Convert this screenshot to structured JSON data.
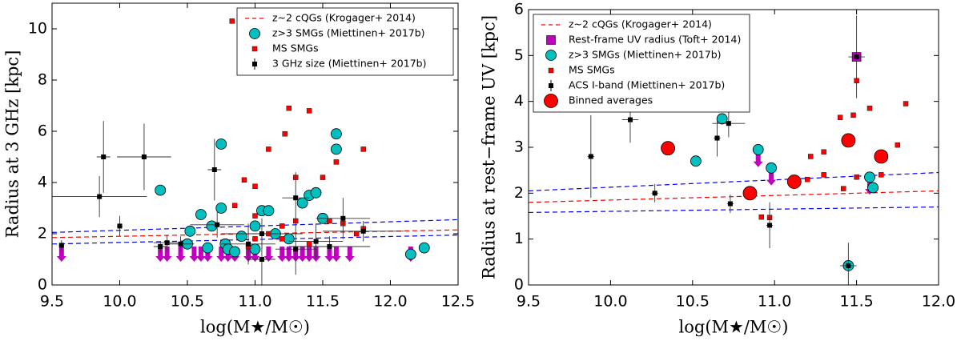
{
  "chart_data": [
    {
      "type": "scatter",
      "ylabel": "Radius at 3 GHz [kpc]",
      "xlabel": "log(M★/M☉)",
      "xlim": [
        9.5,
        12.5
      ],
      "ylim": [
        0,
        11
      ],
      "xticks": [
        9.5,
        {
          "value": 10,
          "label": "10.0"
        },
        10.5,
        {
          "value": 11,
          "label": "11.0"
        },
        11.5,
        {
          "value": 12,
          "label": "12.0"
        },
        12.5
      ],
      "yticks": [
        0,
        2,
        4,
        6,
        8,
        10
      ],
      "legend": "upper right",
      "series": [
        {
          "name": "z~2 cQGs (Krogager+ 2014)",
          "kind": "line",
          "color": "#ff0000",
          "x": [
            9.5,
            12.5
          ],
          "values": [
            1.85,
            2.15
          ]
        },
        {
          "kind": "line",
          "color": "#0000ff",
          "x": [
            9.5,
            12.5
          ],
          "values": [
            2.05,
            2.55
          ]
        },
        {
          "kind": "line",
          "color": "#0000ff",
          "x": [
            9.5,
            12.5
          ],
          "values": [
            1.6,
            1.95
          ]
        },
        {
          "kind": "arrow",
          "color": "#bf00bf",
          "x": [
            9.57,
            10.3,
            10.35,
            10.45,
            10.55,
            10.6,
            10.65,
            10.75,
            10.8,
            10.85,
            10.95,
            11.0,
            11.1,
            11.2,
            11.25,
            11.3,
            11.35,
            11.4,
            11.45,
            11.55,
            11.6,
            11.7,
            12.15
          ],
          "values": [
            1.5,
            1.5,
            1.5,
            1.5,
            1.5,
            1.5,
            1.5,
            1.5,
            1.5,
            1.5,
            1.5,
            1.5,
            1.5,
            1.5,
            1.5,
            1.5,
            1.5,
            1.5,
            1.5,
            1.5,
            1.5,
            1.5,
            1.5
          ]
        },
        {
          "name": "z>3 SMGs (Miettinen+ 2017b)",
          "kind": "circle",
          "color": "#00bfbf",
          "x": [
            10.3,
            10.75,
            10.52,
            10.6,
            10.75,
            10.68,
            10.5,
            10.78,
            10.8,
            10.65,
            10.9,
            11.0,
            11.05,
            11.1,
            11.0,
            11.15,
            11.35,
            11.4,
            11.45,
            11.6,
            11.6,
            11.5,
            12.15,
            12.25,
            11.25,
            10.85
          ],
          "values": [
            3.7,
            5.5,
            2.1,
            2.75,
            3.0,
            2.3,
            1.6,
            1.6,
            1.4,
            1.45,
            1.9,
            2.3,
            2.9,
            2.9,
            1.4,
            2.0,
            3.2,
            3.5,
            3.6,
            5.9,
            5.3,
            2.6,
            1.2,
            1.45,
            1.8,
            1.3
          ]
        },
        {
          "name": "MS SMGs",
          "kind": "square",
          "color": "#ff0000",
          "x": [
            10.83,
            11.25,
            11.4,
            11.1,
            11.8,
            11.22,
            11.0,
            10.92,
            11.3,
            11.6,
            10.85,
            11.5,
            11.0,
            11.3,
            11.8,
            11.75,
            11.2,
            11.4,
            11.0,
            10.95,
            11.55,
            11.65,
            11.1,
            11.2
          ],
          "values": [
            10.3,
            6.9,
            6.8,
            5.3,
            5.3,
            5.9,
            3.85,
            4.1,
            4.2,
            4.8,
            3.1,
            4.2,
            2.7,
            2.5,
            2.2,
            2.0,
            1.8,
            1.6,
            1.8,
            1.5,
            2.5,
            2.4,
            2.0,
            2.3
          ]
        },
        {
          "name": "3 GHz size (Miettinen+ 2017b)",
          "kind": "errsquare",
          "color": "#000000",
          "x": [
            9.57,
            9.85,
            9.88,
            10.0,
            10.18,
            10.3,
            10.35,
            10.45,
            10.7,
            10.72,
            10.95,
            11.05,
            11.05,
            11.3,
            11.45,
            11.3,
            11.65,
            11.8,
            11.55
          ],
          "values": [
            1.55,
            3.45,
            5.0,
            2.3,
            5.0,
            1.5,
            1.65,
            1.6,
            4.5,
            2.35,
            1.6,
            1.0,
            2.0,
            1.4,
            1.7,
            3.4,
            2.6,
            2.1,
            1.5
          ],
          "yerr": [
            0.2,
            0.8,
            1.4,
            0.4,
            1.3,
            0.2,
            0.3,
            0.3,
            1.2,
            0.5,
            0.8,
            1.0,
            0.6,
            1.0,
            0.7,
            1.0,
            0.8,
            0.4,
            0.4
          ],
          "xerr": [
            0.02,
            0.35,
            0.05,
            0.02,
            0.2,
            0.05,
            0.1,
            0.1,
            0.05,
            0.2,
            0.2,
            0.1,
            0.3,
            0.15,
            0.2,
            0.1,
            0.2,
            0.3,
            0.3
          ]
        }
      ]
    },
    {
      "type": "scatter",
      "ylabel": "Radius at rest−frame UV [kpc]",
      "xlabel": "log(M★/M☉)",
      "xlim": [
        9.5,
        12.0
      ],
      "ylim": [
        0,
        6
      ],
      "xticks": [
        9.5,
        {
          "value": 10,
          "label": "10.0"
        },
        10.5,
        {
          "value": 11,
          "label": "11.0"
        },
        11.5,
        {
          "value": 12,
          "label": "12.0"
        }
      ],
      "yticks": [
        0,
        1,
        2,
        3,
        4,
        5,
        6
      ],
      "legend": "upper left",
      "series": [
        {
          "name": "z~2 cQGs (Krogager+ 2014)",
          "kind": "line",
          "color": "#ff0000",
          "x": [
            9.5,
            12.0
          ],
          "values": [
            1.8,
            2.05
          ]
        },
        {
          "kind": "line",
          "color": "#0000ff",
          "x": [
            9.5,
            12.0
          ],
          "values": [
            2.05,
            2.45
          ]
        },
        {
          "kind": "line",
          "color": "#0000ff",
          "x": [
            9.5,
            12.0
          ],
          "values": [
            1.58,
            1.7
          ]
        },
        {
          "kind": "arrow",
          "color": "#bf00bf",
          "x": [
            10.9,
            10.98,
            11.58
          ],
          "values": [
            2.9,
            2.5,
            2.3
          ]
        },
        {
          "name": "Rest-frame UV radius (Toft+ 2014)",
          "kind": "bigsquare",
          "color": "#bf00bf",
          "x": [
            11.5
          ],
          "values": [
            4.97
          ]
        },
        {
          "name": "z>3 SMGs (Miettinen+ 2017b)",
          "kind": "circle",
          "color": "#00bfbf",
          "x": [
            10.68,
            10.52,
            10.9,
            10.98,
            11.58,
            11.6,
            11.45
          ],
          "values": [
            3.62,
            2.7,
            2.95,
            2.55,
            2.35,
            2.12,
            0.42
          ]
        },
        {
          "name": "MS SMGs",
          "kind": "square",
          "color": "#ff0000",
          "x": [
            11.5,
            11.48,
            11.4,
            11.58,
            11.8,
            11.75,
            11.3,
            11.22,
            11.3,
            11.42,
            11.65,
            11.2,
            10.92,
            10.97,
            11.5
          ],
          "values": [
            4.45,
            3.7,
            3.65,
            3.85,
            3.95,
            3.05,
            2.9,
            2.8,
            2.4,
            2.1,
            2.4,
            2.3,
            1.48,
            1.47,
            2.35
          ]
        },
        {
          "name": "ACS I-band (Miettinen+ 2017b)",
          "kind": "errsquare",
          "color": "#000000",
          "x": [
            9.88,
            10.12,
            10.27,
            10.65,
            10.72,
            10.73,
            10.97,
            11.5,
            11.45
          ],
          "values": [
            2.8,
            3.6,
            2.0,
            3.2,
            3.52,
            1.77,
            1.3,
            4.97,
            0.42
          ],
          "yerr": [
            0.9,
            0.5,
            0.2,
            0.4,
            0.3,
            0.2,
            0.5,
            0.9,
            0.5
          ],
          "xerr": [
            0.02,
            0.05,
            0.02,
            0.02,
            0.1,
            0.02,
            0.02,
            0.05,
            0.05
          ]
        },
        {
          "name": "Binned averages",
          "kind": "bigcircle",
          "color": "#ff0000",
          "x": [
            10.35,
            10.85,
            11.12,
            11.45,
            11.65
          ],
          "values": [
            2.98,
            2.0,
            2.25,
            3.15,
            2.8
          ]
        }
      ]
    }
  ]
}
